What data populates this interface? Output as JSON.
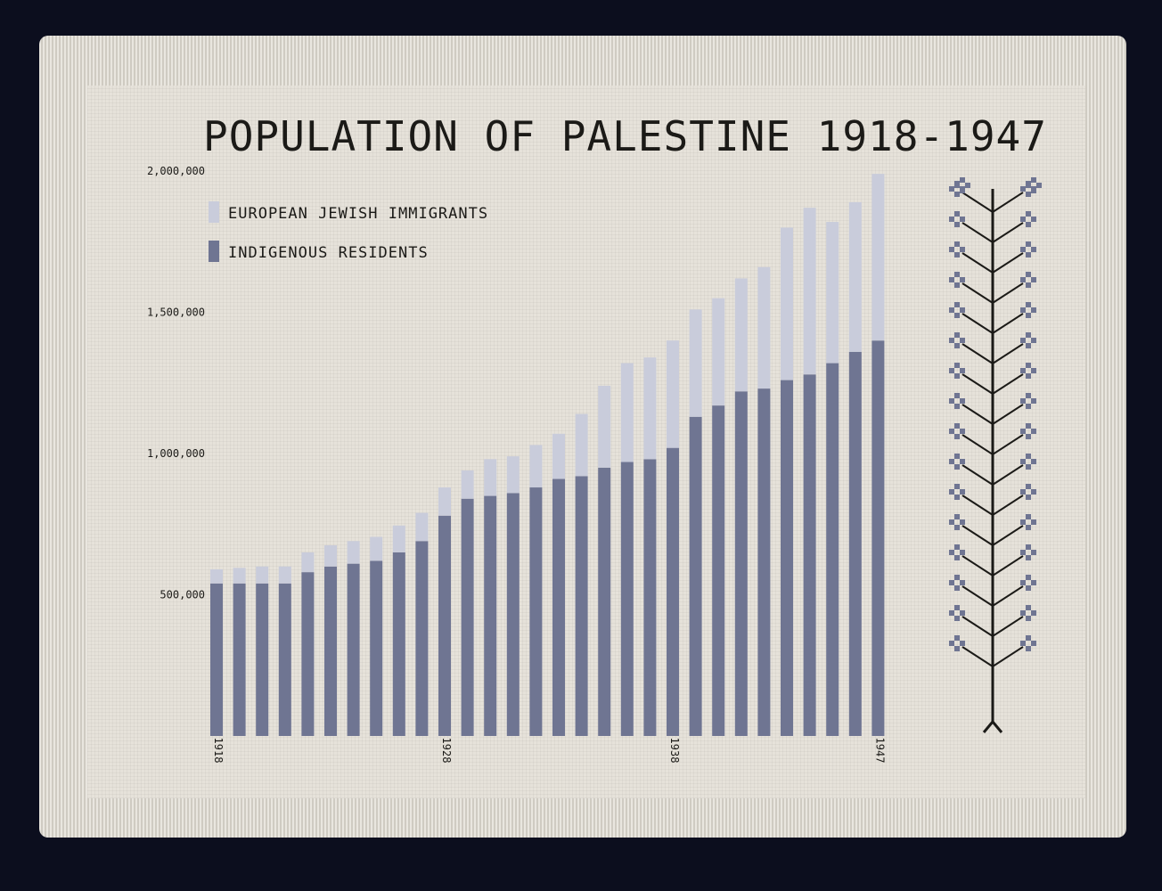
{
  "colors": {
    "background": "#0c0e1e",
    "cloth": "#e6e2da",
    "indigenous": "#6f7592",
    "immigrants": "#c9ccdb",
    "thread_dark": "#1b1a17"
  },
  "chart_data": {
    "type": "bar",
    "stacked": true,
    "title": "POPULATION OF PALESTINE 1918-1947",
    "xlabel": "",
    "ylabel": "",
    "ylim": [
      0,
      2000000
    ],
    "y_ticks": [
      "500,000",
      "1,000,000",
      "1,500,000",
      "2,000,000"
    ],
    "y_tick_values": [
      500000,
      1000000,
      1500000,
      2000000
    ],
    "x_tick_labels": [
      "1918",
      "1928",
      "1938",
      "1947"
    ],
    "x_tick_years": [
      1918,
      1928,
      1938,
      1947
    ],
    "grid": false,
    "legend_position": "top-left",
    "categories": [
      1918,
      1919,
      1920,
      1921,
      1922,
      1923,
      1924,
      1925,
      1926,
      1927,
      1928,
      1929,
      1930,
      1931,
      1932,
      1933,
      1934,
      1935,
      1936,
      1937,
      1938,
      1939,
      1940,
      1941,
      1942,
      1943,
      1944,
      1945,
      1946,
      1947
    ],
    "series": [
      {
        "name": "INDIGENOUS RESIDENTS",
        "color": "#6f7592",
        "values": [
          540000,
          540000,
          540000,
          540000,
          580000,
          600000,
          610000,
          620000,
          650000,
          690000,
          780000,
          840000,
          850000,
          860000,
          880000,
          910000,
          920000,
          950000,
          970000,
          980000,
          1020000,
          1130000,
          1170000,
          1220000,
          1230000,
          1260000,
          1280000,
          1320000,
          1360000,
          1400000
        ]
      },
      {
        "name": "EUROPEAN JEWISH IMMIGRANTS",
        "color": "#c9ccdb",
        "values": [
          50000,
          55000,
          60000,
          60000,
          70000,
          75000,
          80000,
          85000,
          95000,
          100000,
          100000,
          100000,
          130000,
          130000,
          150000,
          160000,
          220000,
          290000,
          350000,
          360000,
          380000,
          380000,
          380000,
          400000,
          430000,
          540000,
          590000,
          500000,
          530000,
          590000
        ]
      }
    ]
  }
}
